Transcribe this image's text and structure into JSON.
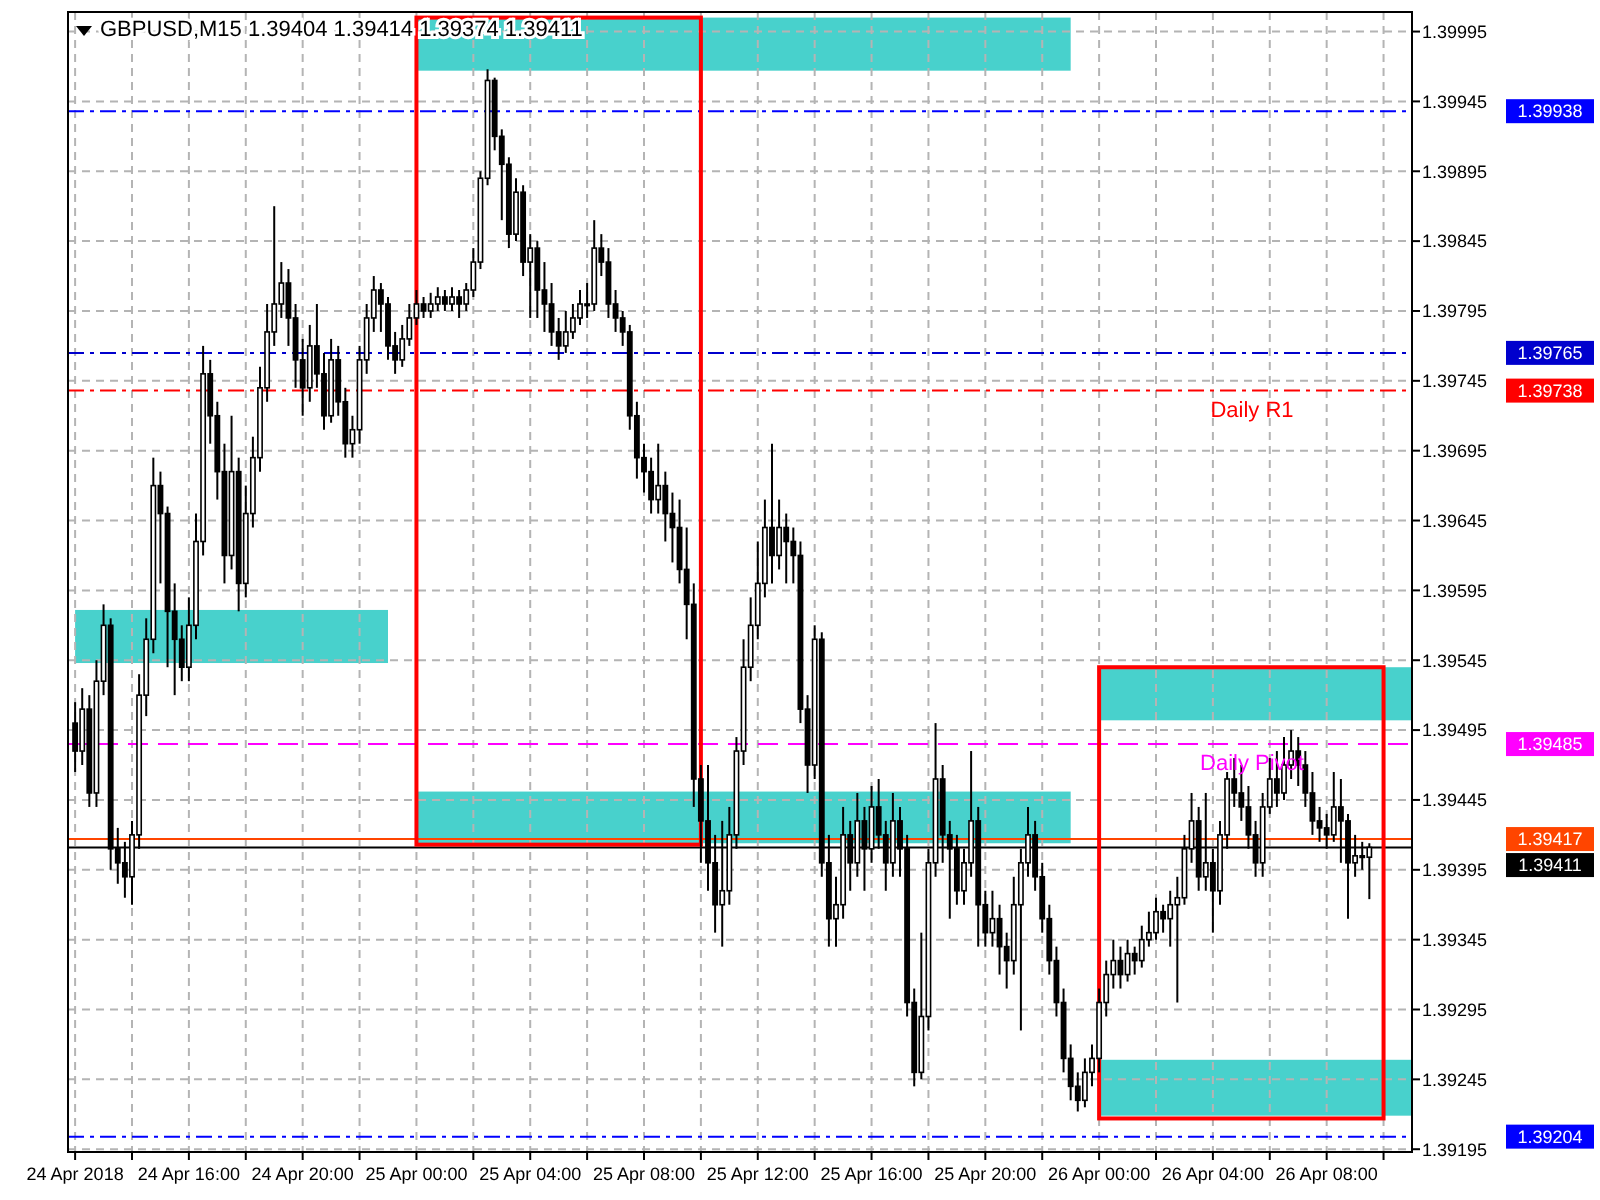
{
  "chart_data": {
    "type": "candlestick",
    "title": "GBPUSD,M15  1.39404 1.39414 1.39374 1.39411",
    "color": "#000000",
    "x": [
      "2018-04-24T12:00",
      "2018-04-24T12:15",
      "2018-04-24T12:30",
      "2018-04-24T12:45",
      "2018-04-24T13:00",
      "2018-04-24T13:15",
      "2018-04-24T13:30",
      "2018-04-24T13:45",
      "2018-04-24T14:00",
      "2018-04-24T14:15",
      "2018-04-24T14:30",
      "2018-04-24T14:45",
      "2018-04-24T15:00",
      "2018-04-24T15:15",
      "2018-04-24T15:30",
      "2018-04-24T15:45",
      "2018-04-24T16:00",
      "2018-04-24T16:15",
      "2018-04-24T16:30",
      "2018-04-24T16:45",
      "2018-04-24T17:00",
      "2018-04-24T17:15",
      "2018-04-24T17:30",
      "2018-04-24T17:45",
      "2018-04-24T18:00",
      "2018-04-24T18:15",
      "2018-04-24T18:30",
      "2018-04-24T18:45",
      "2018-04-24T19:00",
      "2018-04-24T19:15",
      "2018-04-24T19:30",
      "2018-04-24T19:45",
      "2018-04-24T20:00",
      "2018-04-24T20:15",
      "2018-04-24T20:30",
      "2018-04-24T20:45",
      "2018-04-24T21:00",
      "2018-04-24T21:15",
      "2018-04-24T21:30",
      "2018-04-24T21:45",
      "2018-04-24T22:00",
      "2018-04-24T22:15",
      "2018-04-24T22:30",
      "2018-04-24T22:45",
      "2018-04-24T23:00",
      "2018-04-24T23:15",
      "2018-04-24T23:30",
      "2018-04-24T23:45",
      "2018-04-25T00:00",
      "2018-04-25T00:15",
      "2018-04-25T00:30",
      "2018-04-25T00:45",
      "2018-04-25T01:00",
      "2018-04-25T01:15",
      "2018-04-25T01:30",
      "2018-04-25T01:45",
      "2018-04-25T02:00",
      "2018-04-25T02:15",
      "2018-04-25T02:30",
      "2018-04-25T02:45",
      "2018-04-25T03:00",
      "2018-04-25T03:15",
      "2018-04-25T03:30",
      "2018-04-25T03:45",
      "2018-04-25T04:00",
      "2018-04-25T04:15",
      "2018-04-25T04:30",
      "2018-04-25T04:45",
      "2018-04-25T05:00",
      "2018-04-25T05:15",
      "2018-04-25T05:30",
      "2018-04-25T05:45",
      "2018-04-25T06:00",
      "2018-04-25T06:15",
      "2018-04-25T06:30",
      "2018-04-25T06:45",
      "2018-04-25T07:00",
      "2018-04-25T07:15",
      "2018-04-25T07:30",
      "2018-04-25T07:45",
      "2018-04-25T08:00",
      "2018-04-25T08:15",
      "2018-04-25T08:30",
      "2018-04-25T08:45",
      "2018-04-25T09:00",
      "2018-04-25T09:15",
      "2018-04-25T09:30",
      "2018-04-25T09:45",
      "2018-04-25T10:00",
      "2018-04-25T10:15",
      "2018-04-25T10:30",
      "2018-04-25T10:45",
      "2018-04-25T11:00",
      "2018-04-25T11:15",
      "2018-04-25T11:30",
      "2018-04-25T11:45",
      "2018-04-25T12:00",
      "2018-04-25T12:15",
      "2018-04-25T12:30",
      "2018-04-25T12:45",
      "2018-04-25T13:00",
      "2018-04-25T13:15",
      "2018-04-25T13:30",
      "2018-04-25T13:45",
      "2018-04-25T14:00",
      "2018-04-25T14:15",
      "2018-04-25T14:30",
      "2018-04-25T14:45",
      "2018-04-25T15:00",
      "2018-04-25T15:15",
      "2018-04-25T15:30",
      "2018-04-25T15:45",
      "2018-04-25T16:00",
      "2018-04-25T16:15",
      "2018-04-25T16:30",
      "2018-04-25T16:45",
      "2018-04-25T17:00",
      "2018-04-25T17:15",
      "2018-04-25T17:30",
      "2018-04-25T17:45",
      "2018-04-25T18:00",
      "2018-04-25T18:15",
      "2018-04-25T18:30",
      "2018-04-25T18:45",
      "2018-04-25T19:00",
      "2018-04-25T19:15",
      "2018-04-25T19:30",
      "2018-04-25T19:45",
      "2018-04-25T20:00",
      "2018-04-25T20:15",
      "2018-04-25T20:30",
      "2018-04-25T20:45",
      "2018-04-25T21:00",
      "2018-04-25T21:15",
      "2018-04-25T21:30",
      "2018-04-25T21:45",
      "2018-04-25T22:00",
      "2018-04-25T22:15",
      "2018-04-25T22:30",
      "2018-04-25T22:45",
      "2018-04-25T23:00",
      "2018-04-25T23:15",
      "2018-04-25T23:30",
      "2018-04-25T23:45",
      "2018-04-26T00:00",
      "2018-04-26T00:15",
      "2018-04-26T00:30",
      "2018-04-26T00:45",
      "2018-04-26T01:00",
      "2018-04-26T01:15",
      "2018-04-26T01:30",
      "2018-04-26T01:45",
      "2018-04-26T02:00",
      "2018-04-26T02:15",
      "2018-04-26T02:30",
      "2018-04-26T02:45",
      "2018-04-26T03:00",
      "2018-04-26T03:15",
      "2018-04-26T03:30",
      "2018-04-26T03:45",
      "2018-04-26T04:00",
      "2018-04-26T04:15",
      "2018-04-26T04:30",
      "2018-04-26T04:45",
      "2018-04-26T05:00",
      "2018-04-26T05:15",
      "2018-04-26T05:30",
      "2018-04-26T05:45",
      "2018-04-26T06:00",
      "2018-04-26T06:15",
      "2018-04-26T06:30",
      "2018-04-26T06:45",
      "2018-04-26T07:00",
      "2018-04-26T07:15",
      "2018-04-26T07:30",
      "2018-04-26T07:45",
      "2018-04-26T08:00",
      "2018-04-26T08:15",
      "2018-04-26T08:30",
      "2018-04-26T08:45",
      "2018-04-26T09:00",
      "2018-04-26T09:15",
      "2018-04-26T09:30"
    ],
    "ohlc": [
      [
        1.395,
        1.39515,
        1.39465,
        1.3948
      ],
      [
        1.3948,
        1.39525,
        1.3947,
        1.3951
      ],
      [
        1.3951,
        1.3952,
        1.3944,
        1.3945
      ],
      [
        1.3945,
        1.39545,
        1.3944,
        1.3953
      ],
      [
        1.3953,
        1.39585,
        1.3952,
        1.3957
      ],
      [
        1.3957,
        1.39575,
        1.39395,
        1.3941
      ],
      [
        1.3941,
        1.39425,
        1.39385,
        1.394
      ],
      [
        1.394,
        1.39415,
        1.39375,
        1.3939
      ],
      [
        1.3939,
        1.3943,
        1.3937,
        1.3942
      ],
      [
        1.3942,
        1.39535,
        1.3941,
        1.3952
      ],
      [
        1.3952,
        1.39575,
        1.39505,
        1.3956
      ],
      [
        1.3956,
        1.3969,
        1.3955,
        1.3967
      ],
      [
        1.3967,
        1.3968,
        1.396,
        1.3965
      ],
      [
        1.3965,
        1.39655,
        1.3954,
        1.3958
      ],
      [
        1.3958,
        1.396,
        1.3952,
        1.3956
      ],
      [
        1.3956,
        1.3957,
        1.3953,
        1.3954
      ],
      [
        1.3954,
        1.3959,
        1.3953,
        1.3957
      ],
      [
        1.3957,
        1.3965,
        1.3956,
        1.3963
      ],
      [
        1.3963,
        1.3977,
        1.3962,
        1.3975
      ],
      [
        1.3975,
        1.3976,
        1.397,
        1.3972
      ],
      [
        1.3972,
        1.3973,
        1.3966,
        1.3968
      ],
      [
        1.3968,
        1.397,
        1.396,
        1.3962
      ],
      [
        1.3962,
        1.3972,
        1.3961,
        1.3968
      ],
      [
        1.3968,
        1.3969,
        1.3958,
        1.396
      ],
      [
        1.396,
        1.3967,
        1.3959,
        1.3965
      ],
      [
        1.3965,
        1.39705,
        1.3964,
        1.3969
      ],
      [
        1.3969,
        1.39755,
        1.3968,
        1.3974
      ],
      [
        1.3974,
        1.398,
        1.3973,
        1.3978
      ],
      [
        1.3978,
        1.3987,
        1.3977,
        1.398
      ],
      [
        1.398,
        1.3983,
        1.3979,
        1.39815
      ],
      [
        1.39815,
        1.39825,
        1.3977,
        1.3979
      ],
      [
        1.3979,
        1.398,
        1.3974,
        1.3976
      ],
      [
        1.3976,
        1.39775,
        1.3972,
        1.3974
      ],
      [
        1.3974,
        1.39785,
        1.3973,
        1.3977
      ],
      [
        1.3977,
        1.398,
        1.3974,
        1.3975
      ],
      [
        1.3975,
        1.39765,
        1.3971,
        1.3972
      ],
      [
        1.3972,
        1.39775,
        1.39715,
        1.3976
      ],
      [
        1.3976,
        1.3977,
        1.3972,
        1.3973
      ],
      [
        1.3973,
        1.3974,
        1.3969,
        1.397
      ],
      [
        1.397,
        1.3972,
        1.3969,
        1.3971
      ],
      [
        1.3971,
        1.3977,
        1.397,
        1.3976
      ],
      [
        1.3976,
        1.398,
        1.3975,
        1.3979
      ],
      [
        1.3979,
        1.3982,
        1.3978,
        1.3981
      ],
      [
        1.3981,
        1.39815,
        1.3978,
        1.398
      ],
      [
        1.398,
        1.39805,
        1.3976,
        1.3977
      ],
      [
        1.3977,
        1.3978,
        1.3975,
        1.3976
      ],
      [
        1.3976,
        1.39785,
        1.39755,
        1.39775
      ],
      [
        1.39775,
        1.398,
        1.3977,
        1.3979
      ],
      [
        1.3979,
        1.3981,
        1.39785,
        1.398
      ],
      [
        1.398,
        1.39805,
        1.3979,
        1.39795
      ],
      [
        1.39795,
        1.39808,
        1.3979,
        1.398
      ],
      [
        1.398,
        1.39812,
        1.39795,
        1.39805
      ],
      [
        1.39805,
        1.3981,
        1.39795,
        1.398
      ],
      [
        1.398,
        1.39812,
        1.39795,
        1.39805
      ],
      [
        1.39805,
        1.3981,
        1.3979,
        1.398
      ],
      [
        1.398,
        1.39815,
        1.39795,
        1.3981
      ],
      [
        1.3981,
        1.3984,
        1.39805,
        1.3983
      ],
      [
        1.3983,
        1.39895,
        1.39825,
        1.3989
      ],
      [
        1.3989,
        1.39968,
        1.39885,
        1.3996
      ],
      [
        1.3996,
        1.39962,
        1.3991,
        1.3992
      ],
      [
        1.3992,
        1.39925,
        1.3986,
        1.399
      ],
      [
        1.399,
        1.39905,
        1.3984,
        1.3985
      ],
      [
        1.3985,
        1.3989,
        1.39845,
        1.3988
      ],
      [
        1.3988,
        1.39885,
        1.3982,
        1.3983
      ],
      [
        1.3983,
        1.3985,
        1.3979,
        1.3984
      ],
      [
        1.3984,
        1.39845,
        1.3979,
        1.3981
      ],
      [
        1.3981,
        1.3983,
        1.3978,
        1.398
      ],
      [
        1.398,
        1.39815,
        1.3977,
        1.3978
      ],
      [
        1.3978,
        1.3979,
        1.3976,
        1.3977
      ],
      [
        1.3977,
        1.39795,
        1.39765,
        1.3978
      ],
      [
        1.3978,
        1.398,
        1.39775,
        1.3979
      ],
      [
        1.3979,
        1.3981,
        1.39785,
        1.398
      ],
      [
        1.398,
        1.39815,
        1.3979,
        1.398
      ],
      [
        1.398,
        1.3986,
        1.39795,
        1.3984
      ],
      [
        1.3984,
        1.3985,
        1.3982,
        1.3983
      ],
      [
        1.3983,
        1.3984,
        1.3979,
        1.398
      ],
      [
        1.398,
        1.3981,
        1.3978,
        1.3979
      ],
      [
        1.3979,
        1.39795,
        1.3977,
        1.3978
      ],
      [
        1.3978,
        1.39785,
        1.3971,
        1.3972
      ],
      [
        1.3972,
        1.3973,
        1.39675,
        1.3969
      ],
      [
        1.3969,
        1.397,
        1.39665,
        1.3968
      ],
      [
        1.3968,
        1.3969,
        1.3965,
        1.3966
      ],
      [
        1.3966,
        1.397,
        1.3965,
        1.3967
      ],
      [
        1.3967,
        1.3968,
        1.3963,
        1.3965
      ],
      [
        1.3965,
        1.39665,
        1.39615,
        1.3964
      ],
      [
        1.3964,
        1.3966,
        1.396,
        1.3961
      ],
      [
        1.3961,
        1.3964,
        1.3956,
        1.39585
      ],
      [
        1.39585,
        1.396,
        1.3944,
        1.3946
      ],
      [
        1.3946,
        1.3947,
        1.394,
        1.3943
      ],
      [
        1.3943,
        1.3947,
        1.3938,
        1.394
      ],
      [
        1.394,
        1.3942,
        1.3935,
        1.3937
      ],
      [
        1.3937,
        1.3943,
        1.3934,
        1.3938
      ],
      [
        1.3938,
        1.3944,
        1.3937,
        1.3942
      ],
      [
        1.3942,
        1.3949,
        1.3941,
        1.3948
      ],
      [
        1.3948,
        1.3956,
        1.3947,
        1.3954
      ],
      [
        1.3954,
        1.3959,
        1.3953,
        1.3957
      ],
      [
        1.3957,
        1.3963,
        1.3956,
        1.396
      ],
      [
        1.396,
        1.3966,
        1.3959,
        1.3964
      ],
      [
        1.3964,
        1.397,
        1.396,
        1.3962
      ],
      [
        1.3962,
        1.3966,
        1.3961,
        1.3964
      ],
      [
        1.3964,
        1.3965,
        1.396,
        1.3963
      ],
      [
        1.3963,
        1.3964,
        1.396,
        1.3962
      ],
      [
        1.3962,
        1.3963,
        1.395,
        1.3951
      ],
      [
        1.3951,
        1.3952,
        1.3945,
        1.3947
      ],
      [
        1.3947,
        1.3957,
        1.3946,
        1.3956
      ],
      [
        1.3956,
        1.39565,
        1.3939,
        1.394
      ],
      [
        1.394,
        1.3942,
        1.3934,
        1.3936
      ],
      [
        1.3936,
        1.3939,
        1.3934,
        1.3937
      ],
      [
        1.3937,
        1.3944,
        1.3936,
        1.3942
      ],
      [
        1.3942,
        1.3943,
        1.3938,
        1.394
      ],
      [
        1.394,
        1.3945,
        1.3939,
        1.3943
      ],
      [
        1.3943,
        1.3944,
        1.3938,
        1.3941
      ],
      [
        1.3941,
        1.39455,
        1.394,
        1.3944
      ],
      [
        1.3944,
        1.3946,
        1.3941,
        1.3942
      ],
      [
        1.3942,
        1.3943,
        1.3938,
        1.394
      ],
      [
        1.394,
        1.3945,
        1.3939,
        1.3943
      ],
      [
        1.3943,
        1.3944,
        1.3939,
        1.3941
      ],
      [
        1.3941,
        1.3942,
        1.3929,
        1.393
      ],
      [
        1.393,
        1.3931,
        1.3924,
        1.3925
      ],
      [
        1.3925,
        1.3935,
        1.39245,
        1.3929
      ],
      [
        1.3929,
        1.3941,
        1.3928,
        1.394
      ],
      [
        1.394,
        1.395,
        1.3939,
        1.3946
      ],
      [
        1.3946,
        1.3947,
        1.394,
        1.3942
      ],
      [
        1.3942,
        1.3943,
        1.3936,
        1.3941
      ],
      [
        1.3941,
        1.3942,
        1.3937,
        1.3938
      ],
      [
        1.3938,
        1.3941,
        1.3937,
        1.394
      ],
      [
        1.394,
        1.3948,
        1.3939,
        1.3943
      ],
      [
        1.3943,
        1.3944,
        1.3934,
        1.3937
      ],
      [
        1.3937,
        1.3938,
        1.3934,
        1.3935
      ],
      [
        1.3935,
        1.3938,
        1.3934,
        1.3936
      ],
      [
        1.3936,
        1.3937,
        1.3932,
        1.3934
      ],
      [
        1.3934,
        1.3935,
        1.3931,
        1.3933
      ],
      [
        1.3933,
        1.3939,
        1.3932,
        1.3937
      ],
      [
        1.3937,
        1.3941,
        1.3928,
        1.394
      ],
      [
        1.394,
        1.3944,
        1.3939,
        1.3942
      ],
      [
        1.3942,
        1.3943,
        1.3938,
        1.3939
      ],
      [
        1.3939,
        1.394,
        1.3935,
        1.3936
      ],
      [
        1.3936,
        1.3937,
        1.3932,
        1.3933
      ],
      [
        1.3933,
        1.3934,
        1.3929,
        1.393
      ],
      [
        1.393,
        1.3931,
        1.3925,
        1.3926
      ],
      [
        1.3926,
        1.3927,
        1.3923,
        1.3924
      ],
      [
        1.3924,
        1.3925,
        1.39222,
        1.3923
      ],
      [
        1.3923,
        1.3926,
        1.39225,
        1.3925
      ],
      [
        1.3925,
        1.3927,
        1.3924,
        1.3926
      ],
      [
        1.3926,
        1.3931,
        1.3925,
        1.393
      ],
      [
        1.393,
        1.3933,
        1.3929,
        1.3932
      ],
      [
        1.3932,
        1.39345,
        1.3931,
        1.3933
      ],
      [
        1.3933,
        1.3934,
        1.3931,
        1.3932
      ],
      [
        1.3932,
        1.39345,
        1.39315,
        1.39335
      ],
      [
        1.39335,
        1.3934,
        1.3932,
        1.3933
      ],
      [
        1.3933,
        1.39355,
        1.39325,
        1.39345
      ],
      [
        1.39345,
        1.39365,
        1.3934,
        1.3935
      ],
      [
        1.3935,
        1.39375,
        1.39345,
        1.39365
      ],
      [
        1.39365,
        1.3937,
        1.3935,
        1.3936
      ],
      [
        1.3936,
        1.3938,
        1.3934,
        1.3937
      ],
      [
        1.3937,
        1.3939,
        1.393,
        1.39375
      ],
      [
        1.39375,
        1.3942,
        1.3937,
        1.3941
      ],
      [
        1.3941,
        1.3945,
        1.394,
        1.3943
      ],
      [
        1.3943,
        1.3944,
        1.3938,
        1.3939
      ],
      [
        1.3939,
        1.3945,
        1.3938,
        1.394
      ],
      [
        1.394,
        1.3941,
        1.3935,
        1.3938
      ],
      [
        1.3938,
        1.3943,
        1.3937,
        1.3942
      ],
      [
        1.3942,
        1.39465,
        1.3941,
        1.3946
      ],
      [
        1.3946,
        1.39475,
        1.3944,
        1.3945
      ],
      [
        1.3945,
        1.3947,
        1.3943,
        1.3944
      ],
      [
        1.3944,
        1.39455,
        1.3941,
        1.3942
      ],
      [
        1.3942,
        1.3943,
        1.3939,
        1.394
      ],
      [
        1.394,
        1.3945,
        1.3939,
        1.3944
      ],
      [
        1.3944,
        1.39475,
        1.39435,
        1.3946
      ],
      [
        1.3946,
        1.3948,
        1.3944,
        1.3945
      ],
      [
        1.3945,
        1.3949,
        1.39445,
        1.3947
      ],
      [
        1.3947,
        1.39495,
        1.3946,
        1.3948
      ],
      [
        1.3948,
        1.3949,
        1.39455,
        1.3947
      ],
      [
        1.3947,
        1.3948,
        1.3944,
        1.3945
      ],
      [
        1.3945,
        1.39465,
        1.3942,
        1.3943
      ],
      [
        1.3943,
        1.3944,
        1.39415,
        1.39425
      ],
      [
        1.39425,
        1.39435,
        1.3941,
        1.3942
      ],
      [
        1.3942,
        1.39465,
        1.39415,
        1.3944
      ],
      [
        1.3944,
        1.3946,
        1.394,
        1.3943
      ],
      [
        1.3943,
        1.39435,
        1.3936,
        1.394
      ],
      [
        1.394,
        1.3942,
        1.3939,
        1.39405
      ],
      [
        1.39405,
        1.39415,
        1.39395,
        1.39404
      ],
      [
        1.39404,
        1.39414,
        1.39374,
        1.39411
      ]
    ],
    "xlim": [
      "2018-04-24T11:45",
      "2018-04-26T11:00"
    ],
    "ylim": [
      1.39193,
      1.40009
    ],
    "xticks": [
      {
        "value": "2018-04-24T12:00",
        "label": "24 Apr 2018"
      },
      {
        "value": "2018-04-24T14:00",
        "label": null
      },
      {
        "value": "2018-04-24T16:00",
        "label": "24 Apr 16:00"
      },
      {
        "value": "2018-04-24T18:00",
        "label": null
      },
      {
        "value": "2018-04-24T20:00",
        "label": "24 Apr 20:00"
      },
      {
        "value": "2018-04-24T22:00",
        "label": null
      },
      {
        "value": "2018-04-25T00:00",
        "label": "25 Apr 00:00"
      },
      {
        "value": "2018-04-25T02:00",
        "label": null
      },
      {
        "value": "2018-04-25T04:00",
        "label": "25 Apr 04:00"
      },
      {
        "value": "2018-04-25T06:00",
        "label": null
      },
      {
        "value": "2018-04-25T08:00",
        "label": "25 Apr 08:00"
      },
      {
        "value": "2018-04-25T10:00",
        "label": null
      },
      {
        "value": "2018-04-25T12:00",
        "label": "25 Apr 12:00"
      },
      {
        "value": "2018-04-25T14:00",
        "label": null
      },
      {
        "value": "2018-04-25T16:00",
        "label": "25 Apr 16:00"
      },
      {
        "value": "2018-04-25T18:00",
        "label": null
      },
      {
        "value": "2018-04-25T20:00",
        "label": "25 Apr 20:00"
      },
      {
        "value": "2018-04-25T22:00",
        "label": null
      },
      {
        "value": "2018-04-26T00:00",
        "label": "26 Apr 00:00"
      },
      {
        "value": "2018-04-26T02:00",
        "label": null
      },
      {
        "value": "2018-04-26T04:00",
        "label": "26 Apr 04:00"
      },
      {
        "value": "2018-04-26T06:00",
        "label": null
      },
      {
        "value": "2018-04-26T08:00",
        "label": "26 Apr 08:00"
      },
      {
        "value": "2018-04-26T10:00",
        "label": null
      }
    ],
    "yticks": [
      1.39195,
      1.39245,
      1.39295,
      1.39345,
      1.39395,
      1.39445,
      1.39495,
      1.39545,
      1.39595,
      1.39645,
      1.39695,
      1.39745,
      1.39795,
      1.39845,
      1.39895,
      1.39945,
      1.39995
    ],
    "grid": true,
    "ref_lines": [
      {
        "axis": "y",
        "value": 1.39938,
        "label": null,
        "color": "#0000ff",
        "line_style": "dashdot"
      },
      {
        "axis": "y",
        "value": 1.39765,
        "label": null,
        "color": "#0000cd",
        "line_style": "dashdot"
      },
      {
        "axis": "y",
        "value": 1.39738,
        "label": "Daily R1",
        "color": "#ff0000",
        "line_style": "dashdot"
      },
      {
        "axis": "y",
        "value": 1.39485,
        "label": "Daily Pivot",
        "color": "#ff00ff",
        "line_style": "dashed"
      },
      {
        "axis": "y",
        "value": 1.39417,
        "label": null,
        "color": "#ff4500",
        "line_style": "solid"
      },
      {
        "axis": "y",
        "value": 1.39411,
        "label": null,
        "color": "#000000",
        "line_style": "solid"
      },
      {
        "axis": "y",
        "value": 1.39204,
        "label": null,
        "color": "#0000ff",
        "line_style": "dashdot"
      }
    ],
    "annotations": [
      "1.39938",
      "1.39765",
      "1.39738",
      "1.39485",
      "1.39417",
      "1.39411",
      "1.39204"
    ]
  }
}
